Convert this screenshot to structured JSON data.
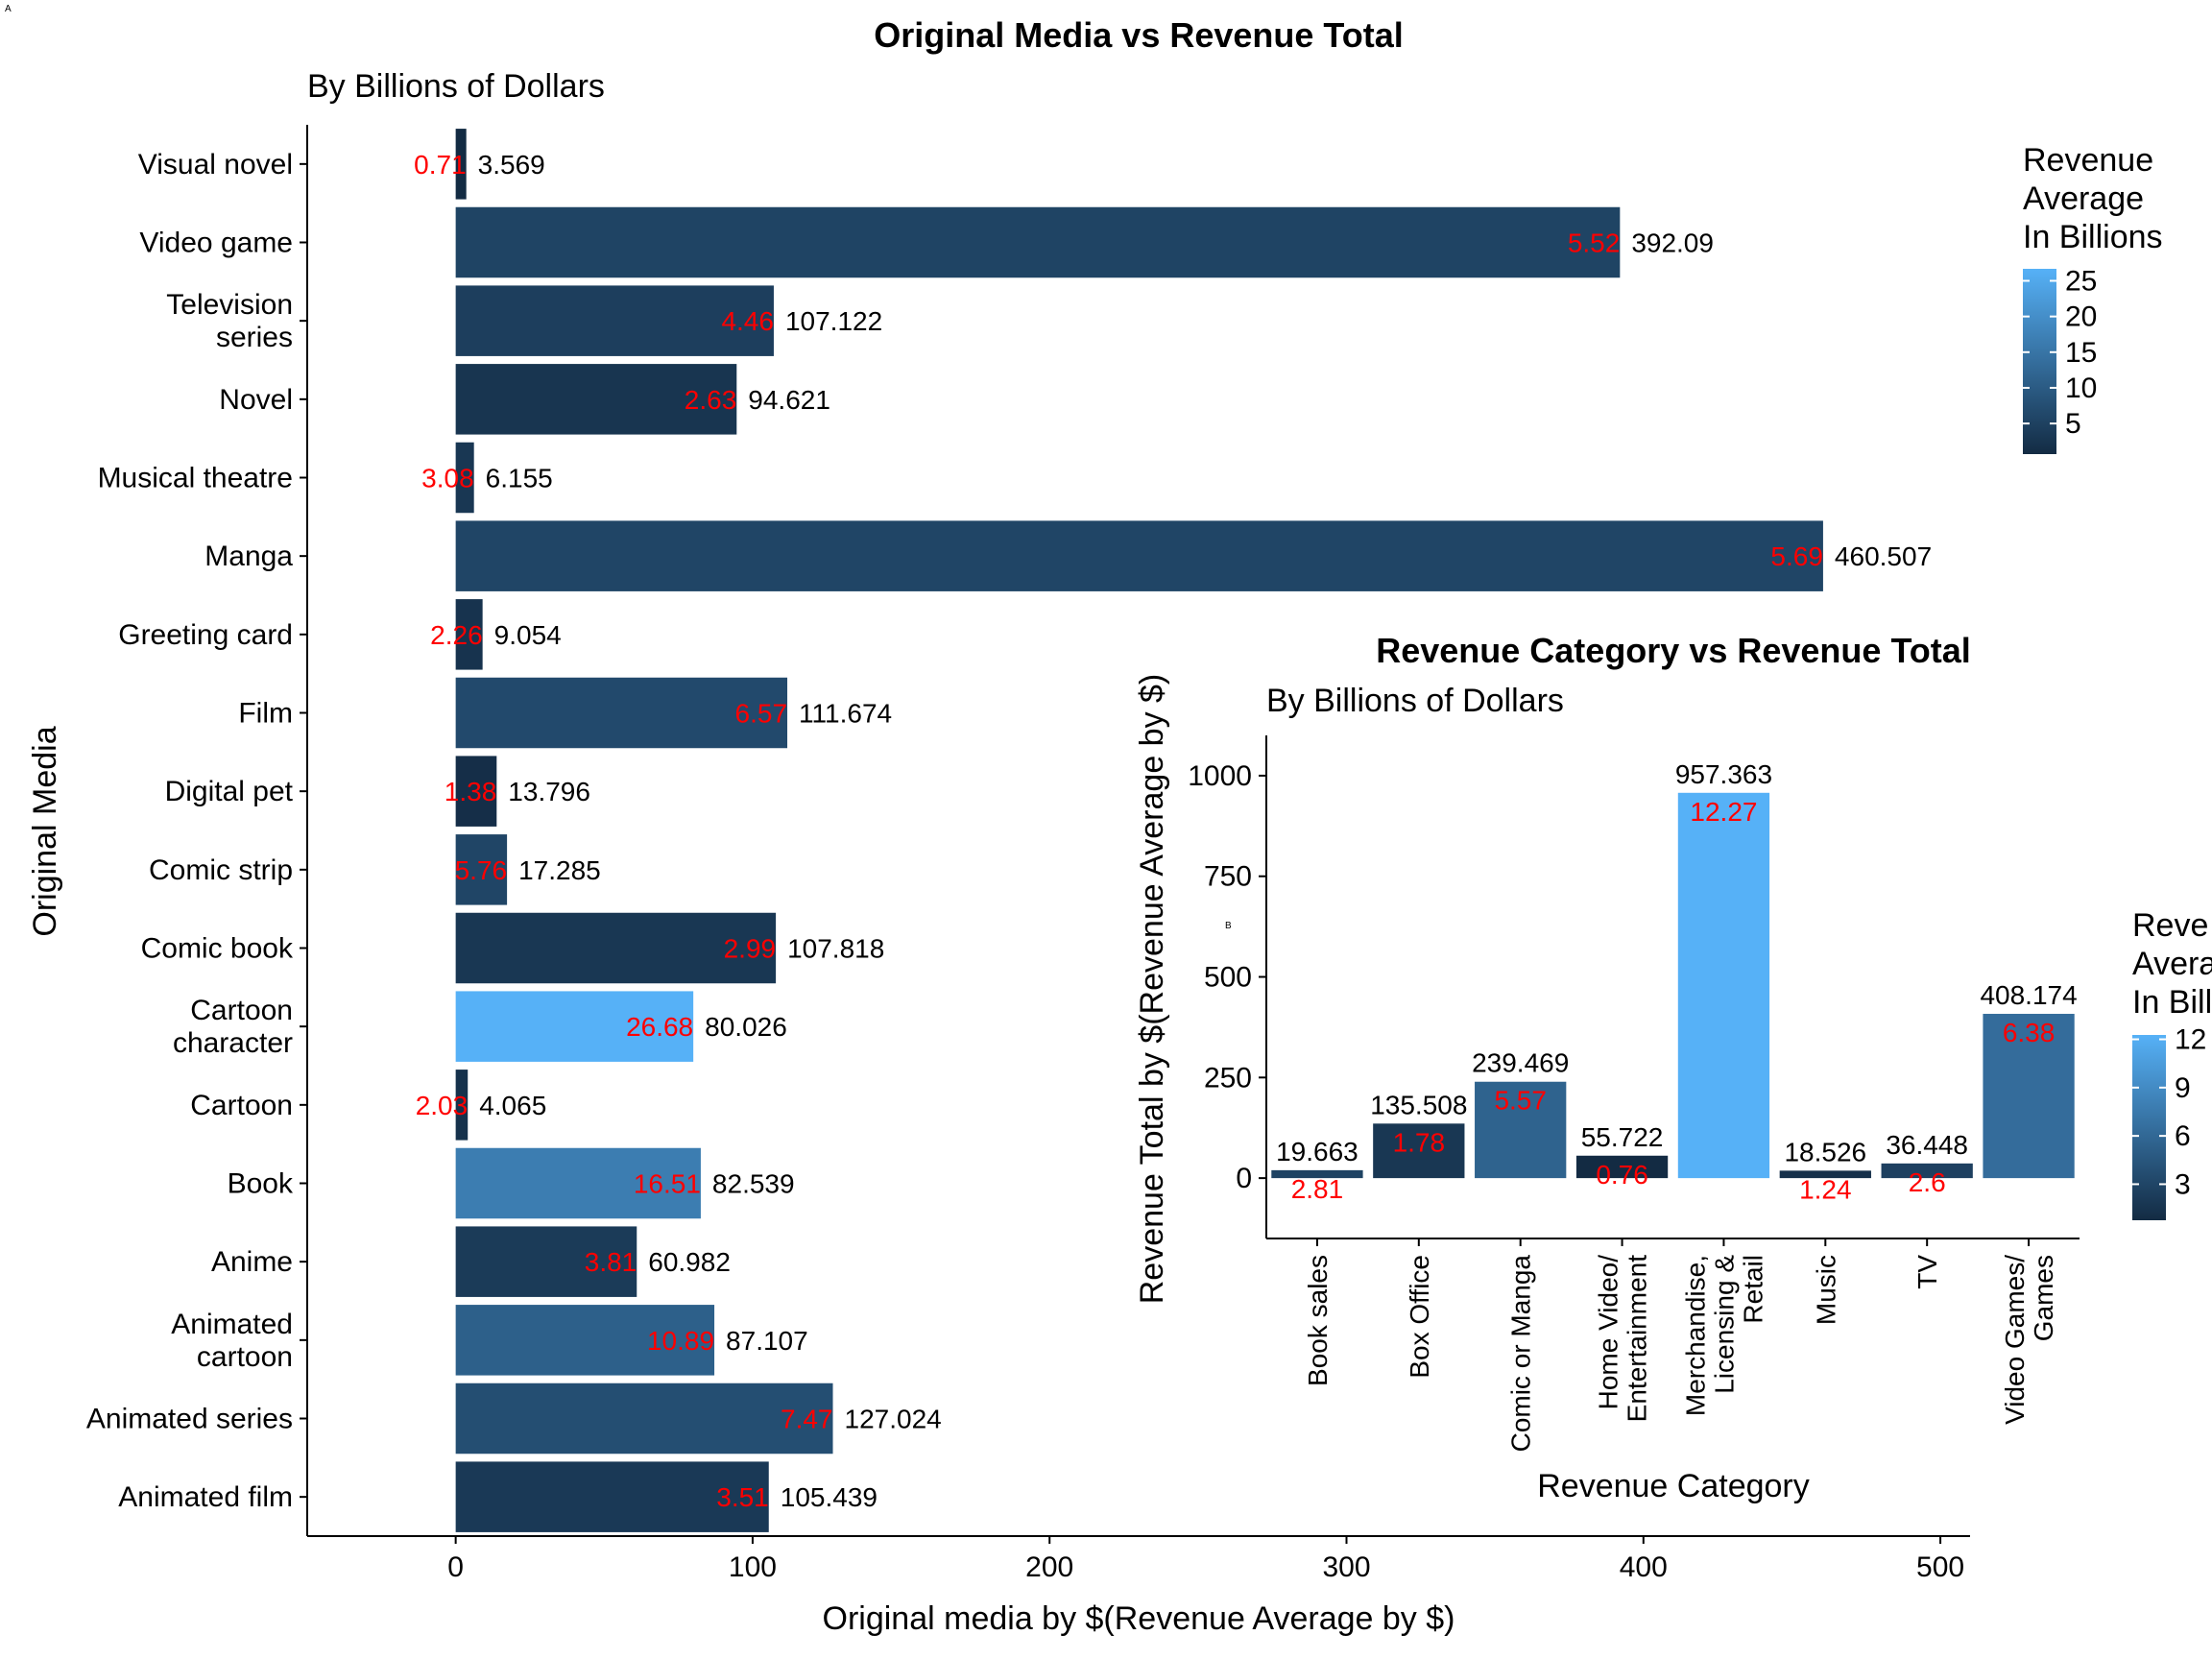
{
  "panel_tags": {
    "main": "A",
    "inset": "B"
  },
  "chart_data": [
    {
      "type": "bar",
      "orientation": "horizontal",
      "title": "Original Media vs Revenue Total",
      "subtitle": "By Billions of Dollars",
      "xlabel": "Original media by $(Revenue Average by $)",
      "ylabel": "Original Media",
      "xlim": [
        -50,
        510
      ],
      "xticks": [
        0,
        100,
        200,
        300,
        400,
        500
      ],
      "categories": [
        "Visual novel",
        "Video game",
        "Television series",
        "Novel",
        "Musical theatre",
        "Manga",
        "Greeting card",
        "Film",
        "Digital pet",
        "Comic strip",
        "Comic book",
        "Cartoon character",
        "Cartoon",
        "Book",
        "Anime",
        "Animated cartoon",
        "Animated series",
        "Animated film"
      ],
      "category_lines": [
        [
          "Visual novel"
        ],
        [
          "Video game"
        ],
        [
          "Television",
          "series"
        ],
        [
          "Novel"
        ],
        [
          "Musical theatre"
        ],
        [
          "Manga"
        ],
        [
          "Greeting card"
        ],
        [
          "Film"
        ],
        [
          "Digital pet"
        ],
        [
          "Comic strip"
        ],
        [
          "Comic book"
        ],
        [
          "Cartoon",
          "character"
        ],
        [
          "Cartoon"
        ],
        [
          "Book"
        ],
        [
          "Anime"
        ],
        [
          "Animated",
          "cartoon"
        ],
        [
          "Animated series"
        ],
        [
          "Animated film"
        ]
      ],
      "values": [
        3.569,
        392.09,
        107.122,
        94.621,
        6.155,
        460.507,
        9.054,
        111.674,
        13.796,
        17.285,
        107.818,
        80.026,
        4.065,
        82.539,
        60.982,
        87.107,
        127.024,
        105.439
      ],
      "value_labels": [
        "3.569",
        "392.09",
        "107.122",
        "94.621",
        "6.155",
        "460.507",
        "9.054",
        "111.674",
        "13.796",
        "17.285",
        "107.818",
        "80.026",
        "4.065",
        "82.539",
        "60.982",
        "87.107",
        "127.024",
        "105.439"
      ],
      "average_labels": [
        "0.71",
        "5.52",
        "4.46",
        "2.63",
        "3.08",
        "5.69",
        "2.26",
        "6.57",
        "1.38",
        "5.76",
        "2.99",
        "26.68",
        "2.03",
        "16.51",
        "3.81",
        "10.89",
        "7.47",
        "3.51"
      ],
      "color_values": [
        0.71,
        5.52,
        4.46,
        2.63,
        3.08,
        5.69,
        2.26,
        6.57,
        1.38,
        5.76,
        2.99,
        26.68,
        2.03,
        16.51,
        3.81,
        10.89,
        7.47,
        3.51
      ],
      "legend": {
        "title_lines": [
          "Revenue",
          "Average",
          "In Billions"
        ],
        "ticks": [
          "25",
          "20",
          "15",
          "10",
          "5"
        ],
        "min": 0.71,
        "max": 26.68,
        "position": "right"
      },
      "colors": {
        "low": "#132B43",
        "high": "#56B1F7",
        "average_label": "#ff0000",
        "value_label": "#000000"
      },
      "grid": false
    },
    {
      "type": "bar",
      "orientation": "vertical",
      "title": "Revenue Category vs Revenue Total",
      "subtitle": "By Billions of Dollars",
      "xlabel": "Revenue Category",
      "ylabel": "Revenue Total by $(Revenue Average by $)",
      "ylim": [
        -150,
        1100
      ],
      "yticks": [
        0,
        250,
        500,
        750,
        1000
      ],
      "categories": [
        "Book sales",
        "Box Office",
        "Comic or Manga",
        "Home Video/ Entertainment",
        "Merchandise, Licensing & Retail",
        "Music",
        "TV",
        "Video Games/ Games"
      ],
      "category_lines": [
        [
          "Book sales"
        ],
        [
          "Box Office"
        ],
        [
          "Comic or Manga"
        ],
        [
          "Home Video/",
          "Entertainment"
        ],
        [
          "Merchandise,",
          "Licensing &",
          "Retail"
        ],
        [
          "Music"
        ],
        [
          "TV"
        ],
        [
          "Video Games/",
          "Games"
        ]
      ],
      "values": [
        19.663,
        135.508,
        239.469,
        55.722,
        957.363,
        18.526,
        36.448,
        408.174
      ],
      "value_labels": [
        "19.663",
        "135.508",
        "239.469",
        "55.722",
        "957.363",
        "18.526",
        "36.448",
        "408.174"
      ],
      "average_labels": [
        "2.81",
        "1.78",
        "5.57",
        "0.76",
        "12.27",
        "1.24",
        "2.6",
        "6.38"
      ],
      "color_values": [
        2.81,
        1.78,
        5.57,
        0.76,
        12.27,
        1.24,
        2.6,
        6.38
      ],
      "legend": {
        "title_lines": [
          "Reve",
          "Avera",
          "In Bill"
        ],
        "ticks": [
          "12",
          "9",
          "6",
          "3"
        ],
        "min": 0.76,
        "max": 12.27,
        "position": "right"
      },
      "colors": {
        "low": "#132B43",
        "high": "#56B1F7",
        "average_label": "#ff0000",
        "value_label": "#000000"
      },
      "grid": false
    }
  ]
}
